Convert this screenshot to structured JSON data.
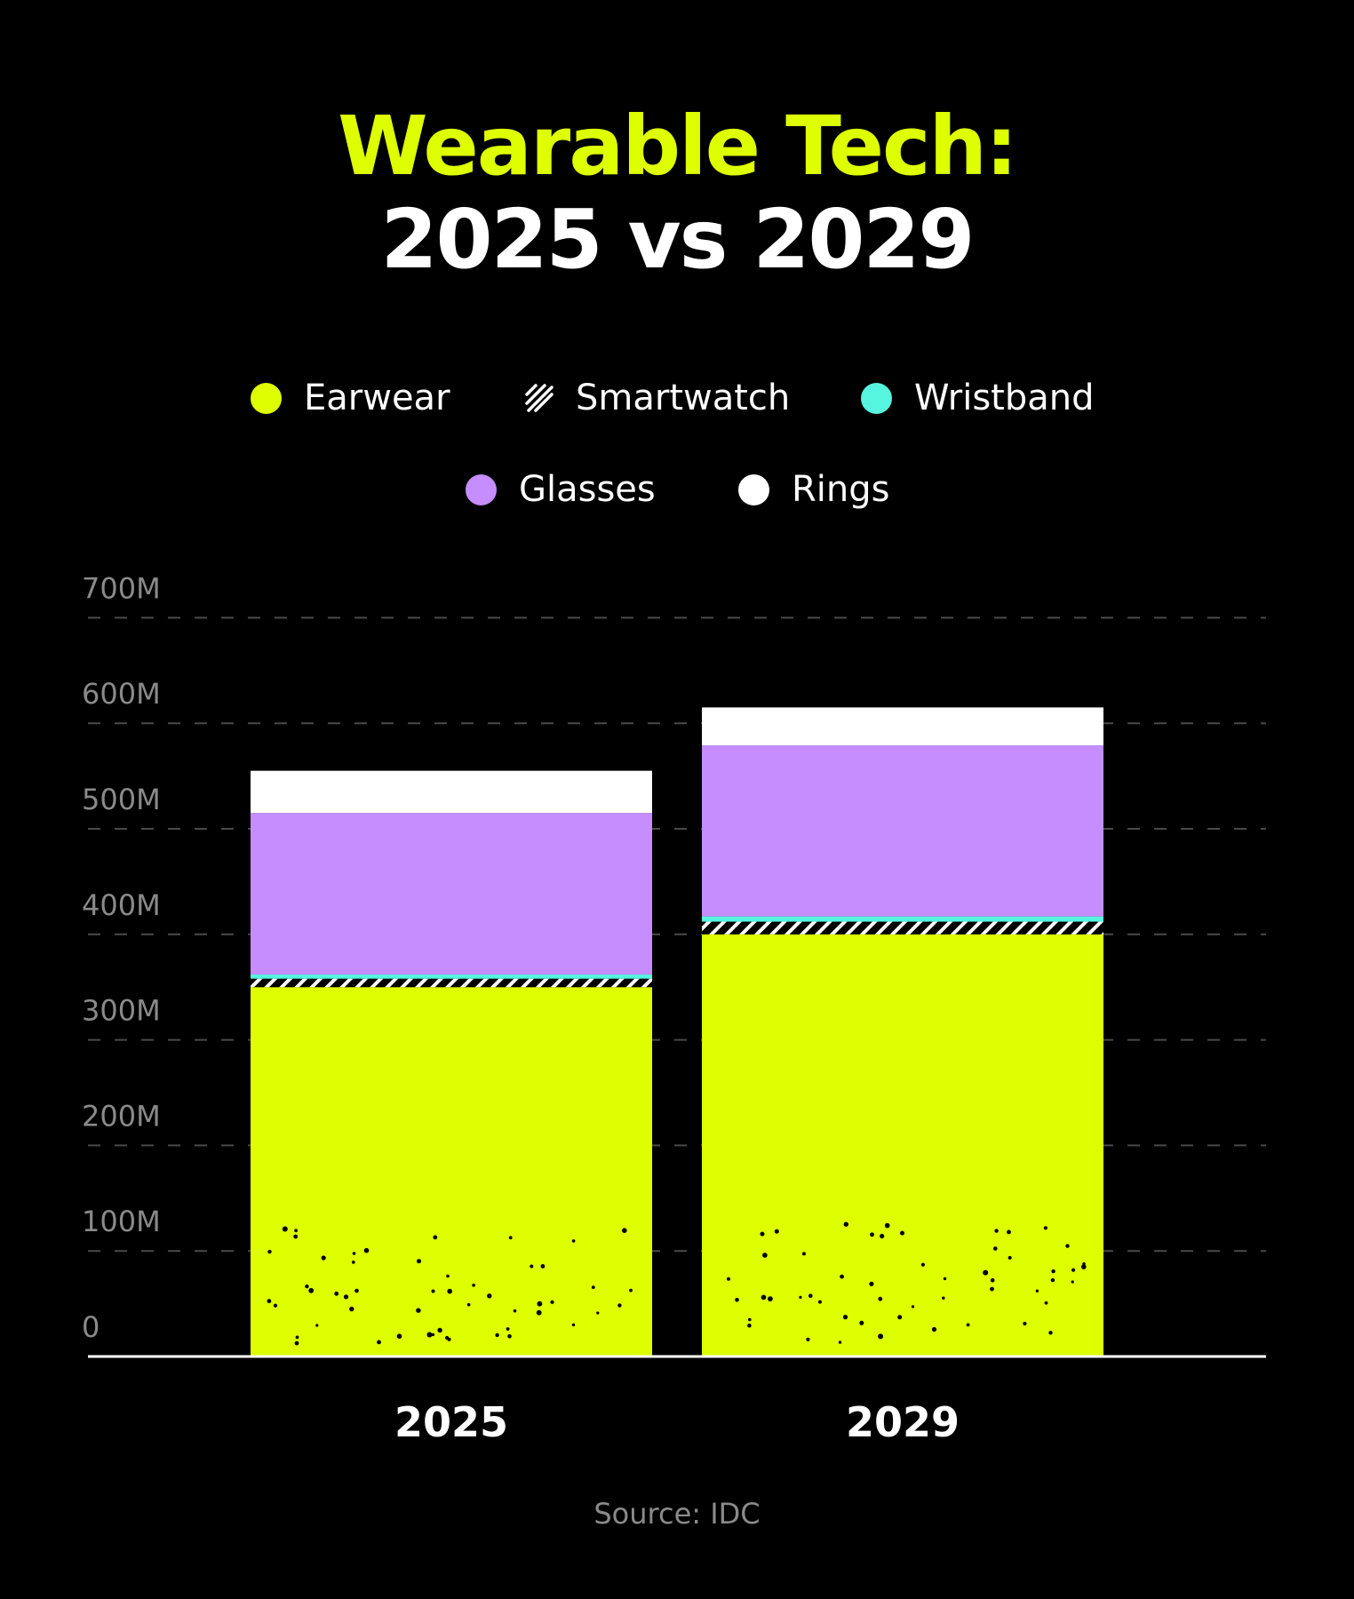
{
  "title": {
    "line1": "Wearable Tech:",
    "line2": "2025 vs 2029"
  },
  "legend": [
    {
      "label": "Earwear",
      "icon": "dot",
      "color": "#ddff00"
    },
    {
      "label": "Smartwatch",
      "icon": "hatch",
      "color": "#ffffff"
    },
    {
      "label": "Wristband",
      "icon": "dot",
      "color": "#55f5df"
    },
    {
      "label": "Glasses",
      "icon": "dot",
      "color": "#c58dff"
    },
    {
      "label": "Rings",
      "icon": "dot",
      "color": "#ffffff"
    }
  ],
  "source": "Source: IDC",
  "chart_data": {
    "type": "bar",
    "stacked": true,
    "categories": [
      "2025",
      "2029"
    ],
    "series": [
      {
        "name": "Earwear",
        "values": [
          350,
          400
        ],
        "color": "#ddff00",
        "pattern": "dots"
      },
      {
        "name": "Smartwatch",
        "values": [
          8,
          12
        ],
        "color": "#ffffff",
        "pattern": "hatch"
      },
      {
        "name": "Wristband",
        "values": [
          4,
          5
        ],
        "color": "#55f5df"
      },
      {
        "name": "Glasses",
        "values": [
          153,
          162
        ],
        "color": "#c58dff"
      },
      {
        "name": "Rings",
        "values": [
          40,
          36
        ],
        "color": "#ffffff"
      }
    ],
    "yticks": [
      "0",
      "100M",
      "200M",
      "300M",
      "400M",
      "500M",
      "600M",
      "700M"
    ],
    "ylim": [
      0,
      700
    ],
    "grid": true,
    "legend_position": "top-center"
  }
}
